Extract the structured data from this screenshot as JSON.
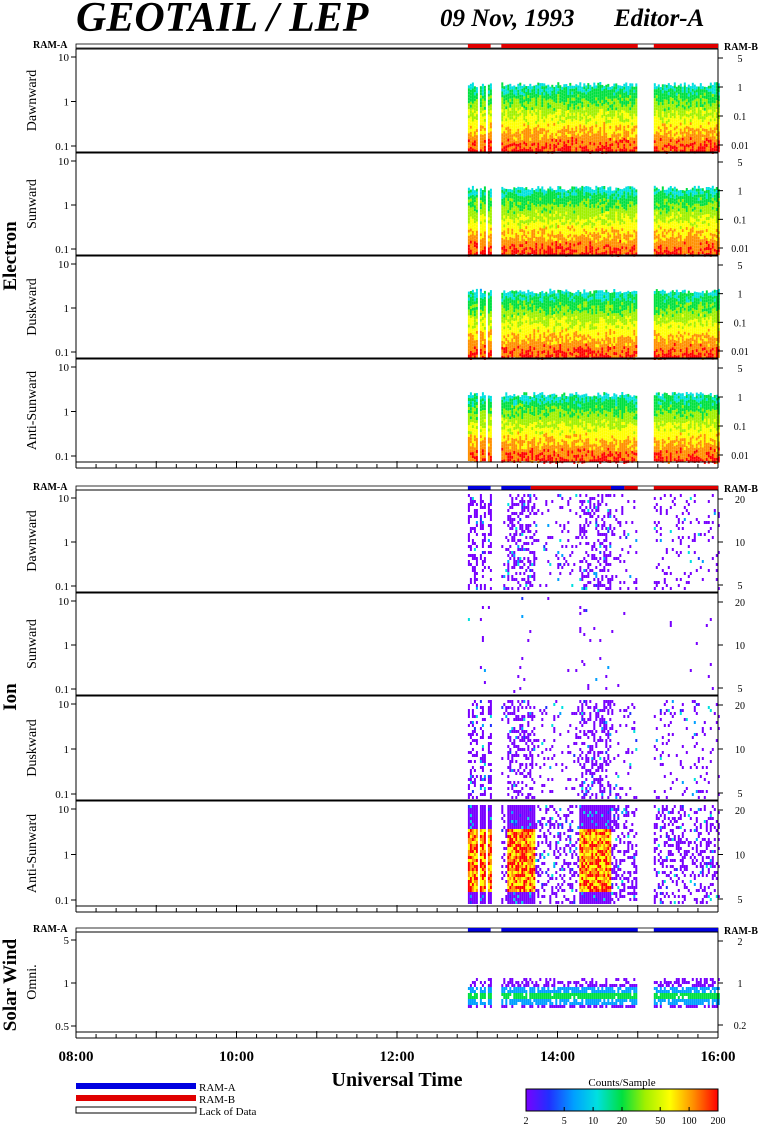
{
  "header": {
    "title": "GEOTAIL / LEP",
    "date": "09 Nov, 1993",
    "editor": "Editor-A"
  },
  "colors": {
    "ram_a": "#0000e0",
    "ram_b": "#e00000",
    "colorbar": [
      "#7800ff",
      "#2030ff",
      "#00a0ff",
      "#00e0e0",
      "#00e040",
      "#a0f000",
      "#ffff00",
      "#ff9000",
      "#ff0000"
    ]
  },
  "labels": {
    "ram_a": "RAM-A",
    "ram_b": "RAM-B",
    "lack": "Lack of Data",
    "xlabel": "Universal Time",
    "colorbar_title": "Counts/Sample"
  },
  "chart_data": {
    "type": "heatmap",
    "x_range": [
      "08:00",
      "16:00"
    ],
    "x_ticks": [
      "08:00",
      "10:00",
      "12:00",
      "14:00",
      "16:00"
    ],
    "colorbar_ticks": [
      "2",
      "5",
      "10",
      "20",
      "50",
      "100",
      "200"
    ],
    "colorbar_range": [
      2,
      200
    ],
    "groups": [
      {
        "name": "Electron",
        "left_ticks": [
          "10",
          "1",
          "0.1"
        ],
        "right_ticks": [
          "5",
          "1",
          "0.1",
          "0.01"
        ],
        "panels": [
          {
            "label": "Dawnward"
          },
          {
            "label": "Sunward"
          },
          {
            "label": "Duskward"
          },
          {
            "label": "Anti-Sunward"
          }
        ],
        "ram_segments": [
          {
            "start": "12:53",
            "end": "13:10",
            "mode": "RAM-B"
          },
          {
            "start": "13:18",
            "end": "15:00",
            "mode": "RAM-B"
          },
          {
            "start": "15:12",
            "end": "16:00",
            "mode": "RAM-B"
          }
        ]
      },
      {
        "name": "Ion",
        "left_ticks": [
          "10",
          "1",
          "0.1"
        ],
        "right_ticks": [
          "20",
          "10",
          "5"
        ],
        "panels": [
          {
            "label": "Dawnward"
          },
          {
            "label": "Sunward"
          },
          {
            "label": "Duskward"
          },
          {
            "label": "Anti-Sunward"
          }
        ],
        "ram_segments": [
          {
            "start": "12:53",
            "end": "13:10",
            "mode": "RAM-A"
          },
          {
            "start": "13:18",
            "end": "13:40",
            "mode": "RAM-A"
          },
          {
            "start": "13:40",
            "end": "14:40",
            "mode": "RAM-B"
          },
          {
            "start": "14:40",
            "end": "14:50",
            "mode": "RAM-A"
          },
          {
            "start": "14:50",
            "end": "15:00",
            "mode": "RAM-B"
          },
          {
            "start": "15:12",
            "end": "16:00",
            "mode": "RAM-B"
          }
        ]
      },
      {
        "name": "Solar Wind",
        "left_ticks": [
          "5",
          "1",
          "0.5"
        ],
        "right_ticks": [
          "2",
          "1",
          "0.2"
        ],
        "panels": [
          {
            "label": "Omni."
          }
        ],
        "ram_segments": [
          {
            "start": "12:53",
            "end": "13:10",
            "mode": "RAM-A"
          },
          {
            "start": "13:18",
            "end": "15:00",
            "mode": "RAM-A"
          },
          {
            "start": "15:12",
            "end": "16:00",
            "mode": "RAM-A"
          }
        ]
      }
    ]
  }
}
